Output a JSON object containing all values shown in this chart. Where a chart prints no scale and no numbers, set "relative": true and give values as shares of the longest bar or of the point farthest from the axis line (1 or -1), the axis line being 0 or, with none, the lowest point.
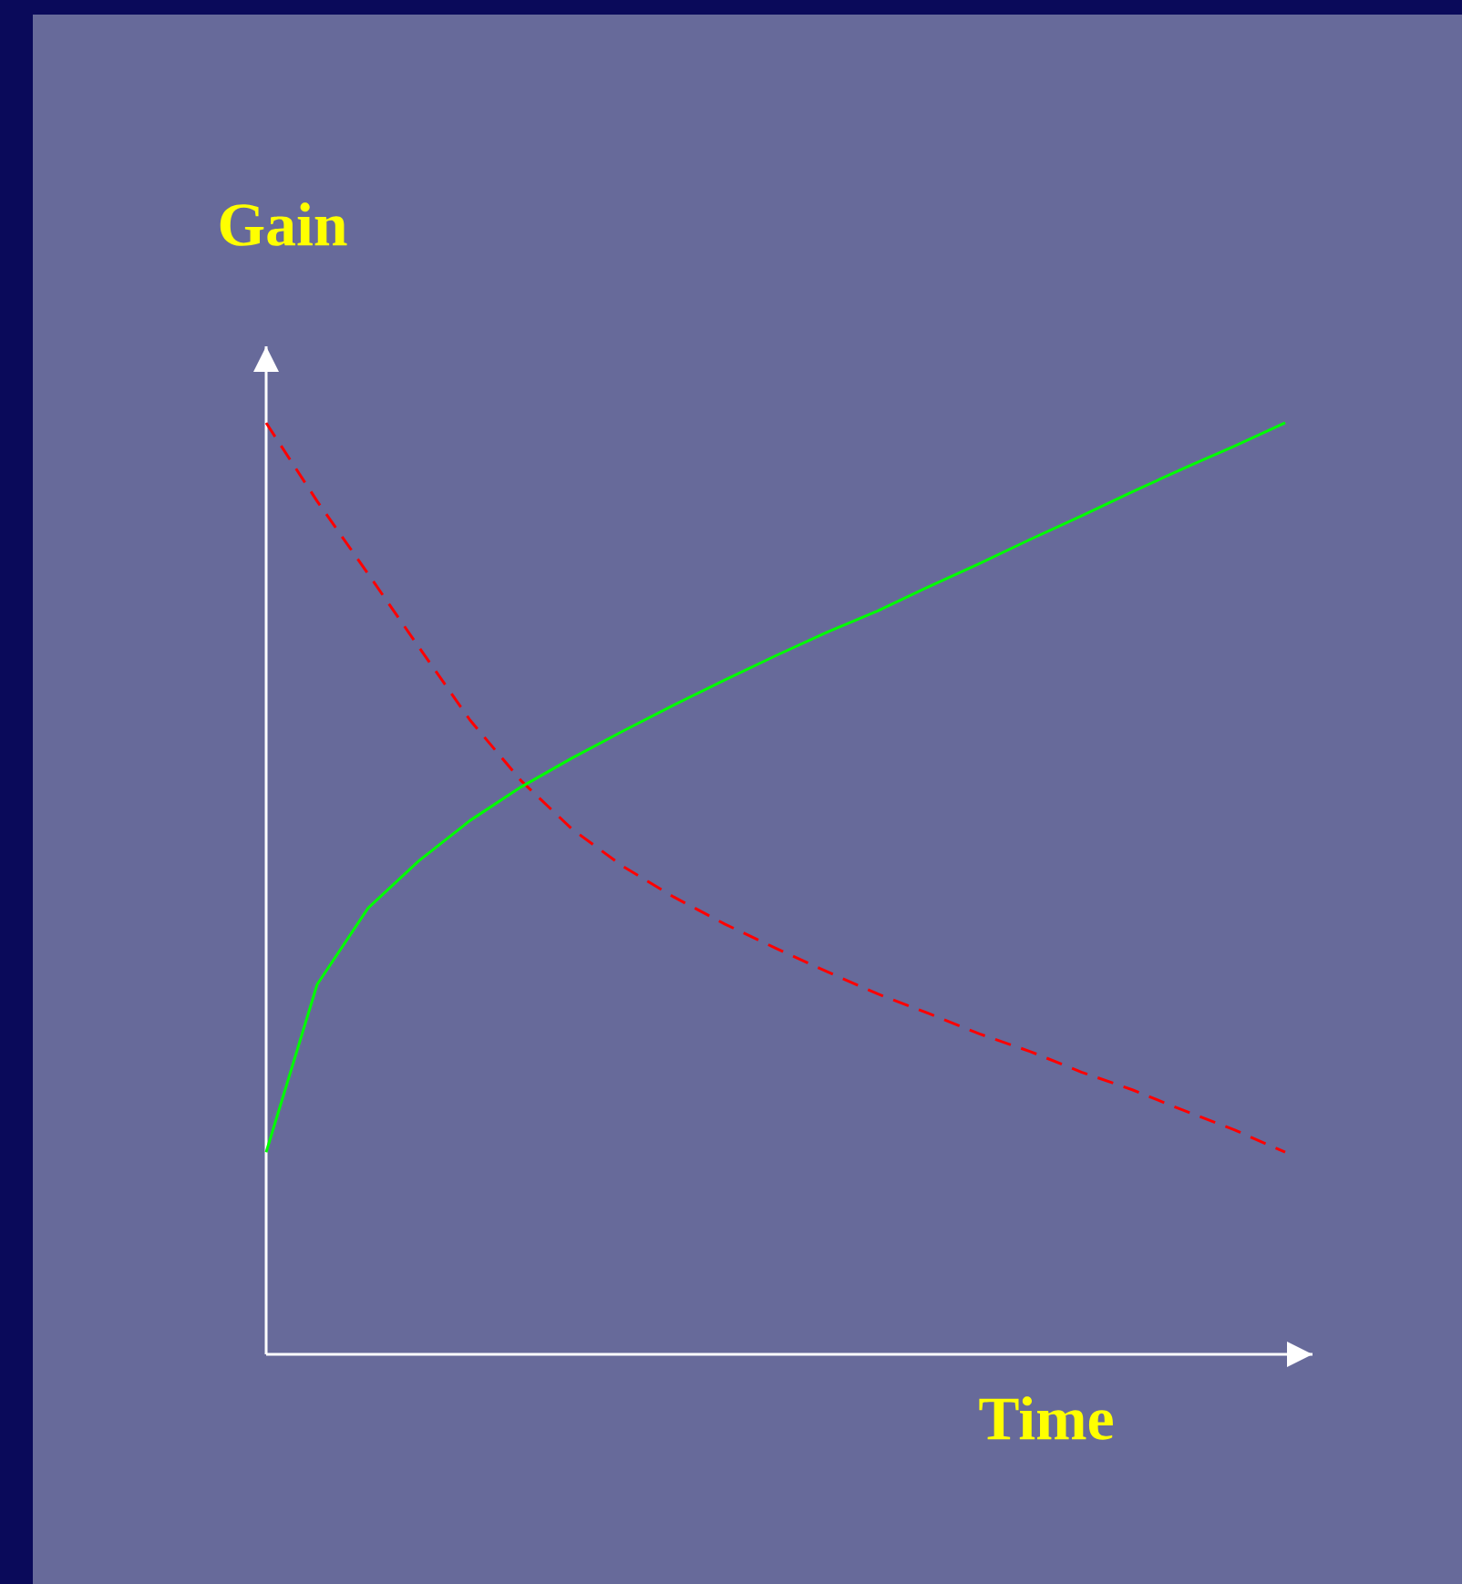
{
  "chart_data": {
    "type": "line",
    "relative": true,
    "xlabel": "Time",
    "ylabel": "Gain",
    "categories": [
      null,
      null,
      null,
      null,
      null,
      null,
      null,
      null,
      null,
      null,
      null,
      null,
      null,
      null,
      null,
      null,
      null,
      null,
      null,
      null,
      null
    ],
    "series": [
      {
        "color": "#ff0000",
        "line_style": "dashed",
        "values": [
          1.0,
          0.916,
          0.838,
          0.759,
          0.681,
          0.616,
          0.564,
          0.524,
          0.491,
          0.462,
          0.436,
          0.411,
          0.387,
          0.366,
          0.344,
          0.325,
          0.303,
          0.284,
          0.262,
          0.241,
          0.217
        ]
      },
      {
        "color": "#00ff00",
        "line_style": "solid",
        "values": [
          0.217,
          0.397,
          0.479,
          0.53,
          0.573,
          0.609,
          0.64,
          0.669,
          0.697,
          0.724,
          0.75,
          0.775,
          0.798,
          0.824,
          0.849,
          0.875,
          0.9,
          0.926,
          0.951,
          0.975,
          1.0
        ]
      }
    ]
  }
}
